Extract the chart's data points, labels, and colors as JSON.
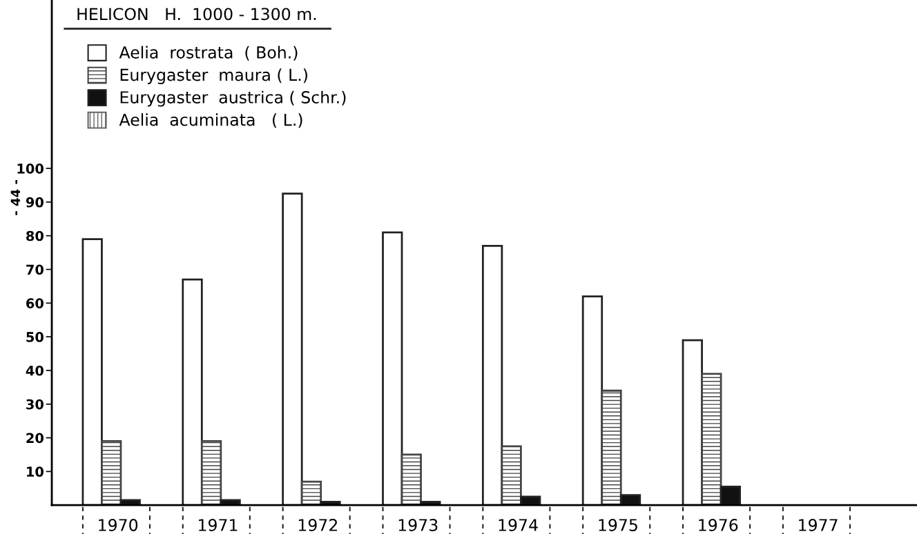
{
  "chart_data": {
    "type": "bar",
    "title": "HELICON   H.  1000 - 1300 m.",
    "categories": [
      "1970",
      "1971",
      "1972",
      "1973",
      "1974",
      "1975",
      "1976",
      "1977"
    ],
    "series": [
      {
        "name": "Aelia  rostrata  ( Boh.)",
        "color": "#ffffff",
        "values": [
          79,
          67,
          92.5,
          81,
          77,
          62,
          49,
          null
        ]
      },
      {
        "name": "Eurygaster  maura ( L.)",
        "color": "#444444",
        "values": [
          19,
          19,
          7,
          15,
          17.5,
          34,
          39,
          null
        ]
      },
      {
        "name": "Eurygaster  austrica ( Schr.)",
        "color": "#111111",
        "values": [
          1.5,
          1.5,
          1,
          1,
          2.5,
          3,
          5.5,
          null
        ]
      },
      {
        "name": "Aelia  acuminata   ( L.)",
        "color": "#666666",
        "values": [
          null,
          null,
          null,
          null,
          null,
          null,
          null,
          null
        ]
      }
    ],
    "ylim": [
      0,
      150
    ],
    "yticks": [
      10,
      20,
      30,
      40,
      50,
      60,
      70,
      80,
      90,
      100
    ],
    "legend": "top left",
    "grid": false,
    "annotations": [
      "- 44 -"
    ]
  }
}
